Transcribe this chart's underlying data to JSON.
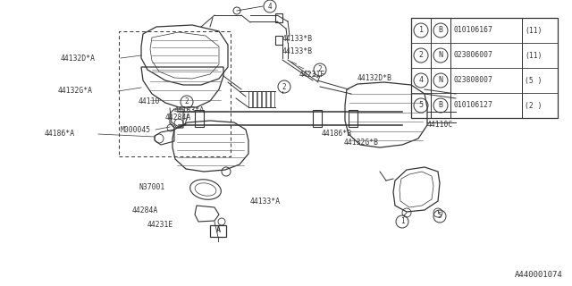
{
  "background_color": "#ffffff",
  "diagram_label": "A440001074",
  "parts_table": {
    "rows": [
      {
        "num": "1",
        "type": "B",
        "part": "010106167",
        "qty": "(11)"
      },
      {
        "num": "2",
        "type": "N",
        "part": "023806007",
        "qty": "(11)"
      },
      {
        "num": "4",
        "type": "N",
        "part": "023808007",
        "qty": "(5 )"
      },
      {
        "num": "5",
        "type": "B",
        "part": "010106127",
        "qty": "(2 )"
      }
    ]
  },
  "line_color": "#333333",
  "font_size": 6.0
}
